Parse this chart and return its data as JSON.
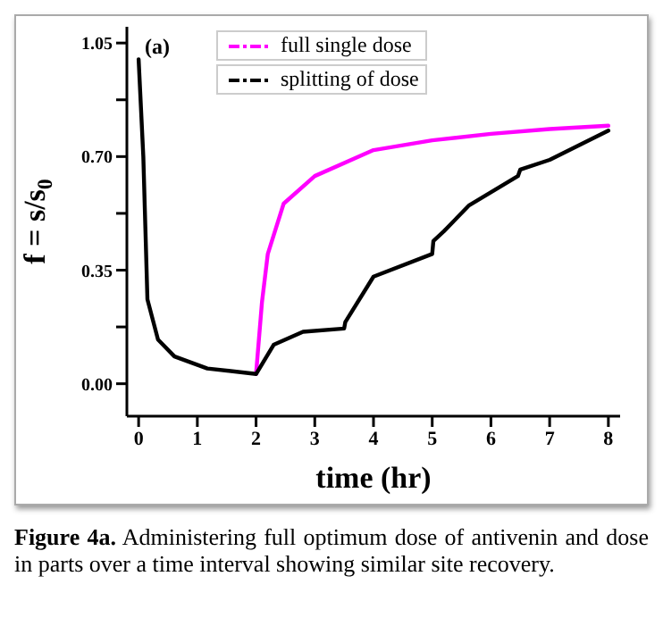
{
  "chart_data": {
    "type": "line",
    "xlabel": "time (hr)",
    "ylabel": "f = s/s$_{0}$",
    "annotations": [
      "(a)",
      "Figure 4a. Administering full optimum dose of antivenin and dose in parts over a time interval showing similar site recovery."
    ],
    "series": [
      {
        "name": "full single dose",
        "color": "#ff00ff",
        "x": [
          2,
          2.1,
          2.2,
          2.47,
          3,
          4,
          5,
          6,
          7,
          8
        ],
        "values": [
          0.03,
          0.25,
          0.4,
          0.555,
          0.64,
          0.72,
          0.75,
          0.77,
          0.785,
          0.795
        ]
      },
      {
        "name": "splitting of dose",
        "color": "#000000",
        "x": [
          0,
          0.08,
          0.15,
          0.33,
          0.61,
          1.17,
          2,
          2.3,
          2.8,
          3.5,
          3.52,
          4,
          5,
          5.02,
          5.2,
          5.63,
          6.46,
          6.5,
          7,
          8
        ],
        "values": [
          1.0,
          0.7,
          0.26,
          0.136,
          0.084,
          0.047,
          0.03,
          0.12,
          0.16,
          0.17,
          0.19,
          0.33,
          0.4,
          0.44,
          0.47,
          0.55,
          0.64,
          0.66,
          0.69,
          0.78
        ]
      }
    ],
    "xlim": [
      -0.2,
      8.2
    ],
    "xticks": [
      0,
      1,
      2,
      3,
      4,
      5,
      6,
      7,
      8
    ],
    "ylim": [
      -0.1,
      1.1
    ],
    "yticks": [
      {
        "value": 0,
        "label": "0.00"
      },
      {
        "value": 0.175,
        "label": null
      },
      0.35,
      {
        "value": 0.525,
        "label": null
      },
      {
        "value": 0.7,
        "label": "0.70"
      },
      {
        "value": 0.875,
        "label": null
      },
      1.05
    ],
    "legend": "top",
    "marker": "none",
    "line_style": "solid",
    "grid": false
  }
}
